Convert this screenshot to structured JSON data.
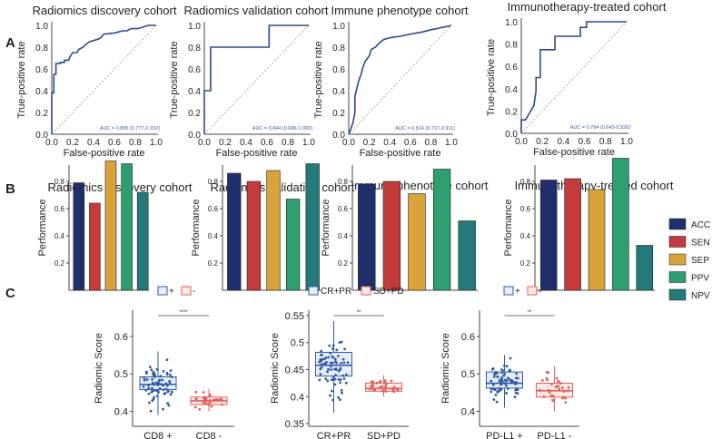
{
  "panel_labels": {
    "A": "A",
    "B": "B",
    "C": "C"
  },
  "colors": {
    "roc": "#2b4a8b",
    "diag": "#999999",
    "auc": "#3b5aa0",
    "ACC": "#1f2f6b",
    "SEN": "#c43b3b",
    "SEP": "#d9a23a",
    "PPV": "#2e9f6e",
    "NPV": "#237a78",
    "pos": "#2f5aa8",
    "neg": "#e0605a",
    "posFill": "#e8eef8",
    "negFill": "#fbe9e7"
  },
  "chart_data": [
    {
      "type": "line",
      "panel": "A",
      "title": "Radiomics discovery cohort",
      "xlabel": "False-positive rate",
      "ylabel": "True-positive rate",
      "xlim": [
        0,
        1
      ],
      "ylim": [
        0,
        1
      ],
      "ticks": [
        "0.0",
        "0.2",
        "0.4",
        "0.6",
        "0.8",
        "1.0"
      ],
      "auc": "AUC = 0.855 (0.777-0.932)",
      "x": [
        0,
        0,
        0.02,
        0.02,
        0.04,
        0.04,
        0.08,
        0.08,
        0.12,
        0.12,
        0.16,
        0.18,
        0.2,
        0.24,
        0.26,
        0.3,
        0.32,
        0.36,
        0.4,
        0.46,
        0.5,
        0.6,
        0.68,
        0.72,
        0.76,
        0.82,
        0.86,
        0.92,
        1.0
      ],
      "y": [
        0,
        0.38,
        0.38,
        0.55,
        0.55,
        0.65,
        0.65,
        0.66,
        0.66,
        0.68,
        0.68,
        0.72,
        0.75,
        0.75,
        0.78,
        0.8,
        0.82,
        0.85,
        0.86,
        0.88,
        0.92,
        0.93,
        0.95,
        0.95,
        0.97,
        0.97,
        0.98,
        1.0,
        1.0
      ]
    },
    {
      "type": "line",
      "panel": "A",
      "title": "Radiomics validation cohort",
      "xlabel": "False-positive rate",
      "ylabel": "True-positive rate",
      "xlim": [
        0,
        1
      ],
      "ylim": [
        0,
        1
      ],
      "ticks": [
        "0.0",
        "0.2",
        "0.4",
        "0.6",
        "0.8",
        "1.0"
      ],
      "auc": "AUC = 0.844 (0.686-1.000)",
      "x": [
        0,
        0,
        0.06,
        0.06,
        0.12,
        0.12,
        0.62,
        0.62,
        1.0
      ],
      "y": [
        0,
        0.4,
        0.4,
        0.8,
        0.8,
        0.8,
        0.8,
        1.0,
        1.0
      ]
    },
    {
      "type": "line",
      "panel": "A",
      "title": "Immune phenotype cohort",
      "xlabel": "False-positive rate",
      "ylabel": "True-positive rate",
      "xlim": [
        0,
        1
      ],
      "ylim": [
        0,
        1
      ],
      "ticks": [
        "0.0",
        "0.2",
        "0.4",
        "0.6",
        "0.8",
        "1.0"
      ],
      "auc": "AUC = 0.814 (0.717-0.911)",
      "x": [
        0,
        0.04,
        0.06,
        0.06,
        0.1,
        0.12,
        0.14,
        0.16,
        0.2,
        0.22,
        0.26,
        0.3,
        0.34,
        0.38,
        0.42,
        0.5,
        0.6,
        0.72,
        0.8,
        0.86,
        0.9,
        0.96,
        1.0
      ],
      "y": [
        0,
        0.1,
        0.2,
        0.35,
        0.5,
        0.55,
        0.62,
        0.67,
        0.72,
        0.78,
        0.8,
        0.84,
        0.87,
        0.88,
        0.89,
        0.9,
        0.92,
        0.94,
        0.96,
        0.97,
        0.98,
        0.99,
        1.0
      ]
    },
    {
      "type": "line",
      "panel": "A",
      "title": "Immunotherapy-treated cohort",
      "xlabel": "False-positive rate",
      "ylabel": "True-positive rate",
      "xlim": [
        0,
        1
      ],
      "ylim": [
        0,
        1
      ],
      "ticks": [
        "0.0",
        "0.2",
        "0.4",
        "0.6",
        "0.8",
        "1.0"
      ],
      "auc": "AUC = 0.784 (0.643-0.926)",
      "x": [
        0,
        0,
        0.04,
        0.04,
        0.12,
        0.14,
        0.14,
        0.18,
        0.18,
        0.32,
        0.32,
        0.56,
        0.56,
        0.62,
        0.62,
        1.0
      ],
      "y": [
        0,
        0.12,
        0.12,
        0.12,
        0.25,
        0.38,
        0.5,
        0.5,
        0.75,
        0.75,
        0.87,
        0.87,
        0.95,
        0.95,
        1.0,
        1.0
      ]
    },
    {
      "type": "bar",
      "panel": "B",
      "title": "Radiomics discovery cohort",
      "ylabel": "Performance",
      "ylim": [
        0,
        1
      ],
      "yticks": [
        "0.2",
        "0.4",
        "0.6",
        "0.8"
      ],
      "categories": [
        "ACC",
        "SEN",
        "SEP",
        "PPV",
        "NPV"
      ],
      "values": [
        0.79,
        0.64,
        0.95,
        0.93,
        0.72
      ]
    },
    {
      "type": "bar",
      "panel": "B",
      "title": "Radiomics validation cohort",
      "ylabel": "Performance",
      "ylim": [
        0,
        1
      ],
      "yticks": [
        "0.2",
        "0.4",
        "0.6",
        "0.8"
      ],
      "categories": [
        "ACC",
        "SEN",
        "SEP",
        "PPV",
        "NPV"
      ],
      "values": [
        0.86,
        0.8,
        0.88,
        0.67,
        0.93
      ]
    },
    {
      "type": "bar",
      "panel": "B",
      "title": "Immune phenotype cohort",
      "ylabel": "Performance",
      "ylim": [
        0,
        1
      ],
      "yticks": [
        "0.2",
        "0.4",
        "0.6",
        "0.8"
      ],
      "categories": [
        "ACC",
        "SEN",
        "SEP",
        "PPV",
        "NPV"
      ],
      "values": [
        0.78,
        0.8,
        0.71,
        0.89,
        0.51
      ]
    },
    {
      "type": "bar",
      "panel": "B",
      "title": "Immunotherapy-treated cohort",
      "ylabel": "Performance",
      "ylim": [
        0,
        1
      ],
      "yticks": [
        "0.2",
        "0.4",
        "0.6",
        "0.8"
      ],
      "categories": [
        "ACC",
        "SEN",
        "SEP",
        "PPV",
        "NPV"
      ],
      "values": [
        0.81,
        0.82,
        0.74,
        0.97,
        0.33
      ]
    },
    {
      "type": "box",
      "panel": "C",
      "ylabel": "Radiomic Score",
      "ylim": [
        0.36,
        0.67
      ],
      "yticks": [
        0.4,
        0.5,
        0.6
      ],
      "significance": "****",
      "legend": [
        "+",
        "-"
      ],
      "categories": [
        "CD8 +",
        "CD8 -"
      ],
      "boxes": [
        {
          "q1": 0.458,
          "median": 0.472,
          "q3": 0.492,
          "whisker_low": 0.39,
          "whisker_high": 0.56
        },
        {
          "q1": 0.418,
          "median": 0.428,
          "q3": 0.438,
          "whisker_low": 0.4,
          "whisker_high": 0.46
        }
      ]
    },
    {
      "type": "box",
      "panel": "C",
      "ylabel": "Radiomic Score",
      "ylim": [
        0.345,
        0.56
      ],
      "yticks": [
        0.35,
        0.4,
        0.45,
        0.5,
        0.55
      ],
      "significance": "**",
      "legend": [
        "CR+PR",
        "SD+PD"
      ],
      "categories": [
        "CR+PR",
        "SD+PD"
      ],
      "boxes": [
        {
          "q1": 0.438,
          "median": 0.458,
          "q3": 0.482,
          "whisker_low": 0.37,
          "whisker_high": 0.54
        },
        {
          "q1": 0.41,
          "median": 0.415,
          "q3": 0.425,
          "whisker_low": 0.4,
          "whisker_high": 0.44
        }
      ]
    },
    {
      "type": "box",
      "panel": "C",
      "ylabel": "Radiomic Score",
      "ylim": [
        0.36,
        0.67
      ],
      "yticks": [
        0.4,
        0.5,
        0.6
      ],
      "significance": "**",
      "legend": [
        "+",
        "-"
      ],
      "categories": [
        "PD-L1 +",
        "PD-L1 -"
      ],
      "boxes": [
        {
          "q1": 0.462,
          "median": 0.475,
          "q3": 0.505,
          "whisker_low": 0.41,
          "whisker_high": 0.55
        },
        {
          "q1": 0.438,
          "median": 0.455,
          "q3": 0.475,
          "whisker_low": 0.4,
          "whisker_high": 0.52
        }
      ]
    }
  ],
  "legend_B": [
    "ACC",
    "SEN",
    "SEP",
    "PPV",
    "NPV"
  ]
}
